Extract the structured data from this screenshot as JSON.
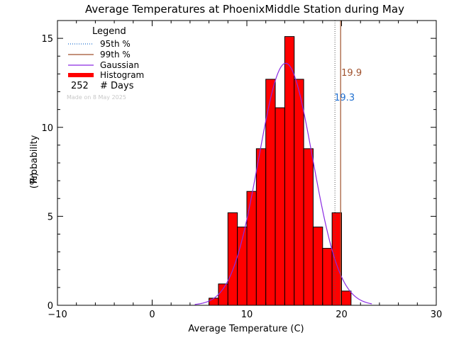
{
  "chart_data": {
    "type": "bar",
    "title": "Average Temperatures at PhoenixMiddle Station during May",
    "xlabel": "Average Temperature (C)",
    "ylabel_line1": "Probability",
    "ylabel_line2": "(%)",
    "xlim": [
      -10,
      30
    ],
    "ylim": [
      0,
      16
    ],
    "xticks": [
      -10,
      0,
      10,
      20,
      30
    ],
    "yticks": [
      0,
      5,
      10,
      15
    ],
    "bin_width": 1,
    "histogram": {
      "bin_starts": [
        6,
        7,
        8,
        9,
        10,
        11,
        12,
        13,
        14,
        15,
        16,
        17,
        18,
        19,
        20
      ],
      "values": [
        0.4,
        1.2,
        5.2,
        4.4,
        6.4,
        8.8,
        12.7,
        11.1,
        15.1,
        12.7,
        8.8,
        4.4,
        3.2,
        5.2,
        0.8
      ],
      "color": "#ff0000"
    },
    "gaussian": {
      "mean": 14.1,
      "std": 2.85,
      "peak": 13.6,
      "xrange": [
        4.5,
        23.2
      ],
      "color": "#8a2be2"
    },
    "p95": {
      "value": 19.3,
      "label": "19.3",
      "label_y": 11.5,
      "color": "#1f6fcf"
    },
    "p99": {
      "value": 19.9,
      "label": "19.9",
      "label_y": 12.9,
      "color": "#a0522d"
    },
    "legend": {
      "title": "Legend",
      "entries": [
        {
          "label": "95th %",
          "style": "dotted",
          "color": "#1f6fcf"
        },
        {
          "label": "99th %",
          "style": "solid",
          "color": "#a0522d"
        },
        {
          "label": "Gaussian",
          "style": "solid",
          "color": "#8a2be2"
        },
        {
          "label": "Histogram",
          "style": "thick",
          "color": "#ff0000"
        }
      ],
      "count_value": "252",
      "count_label": "# Days",
      "footnote": "Made on 8 May 2025",
      "placement": "top-left"
    }
  }
}
